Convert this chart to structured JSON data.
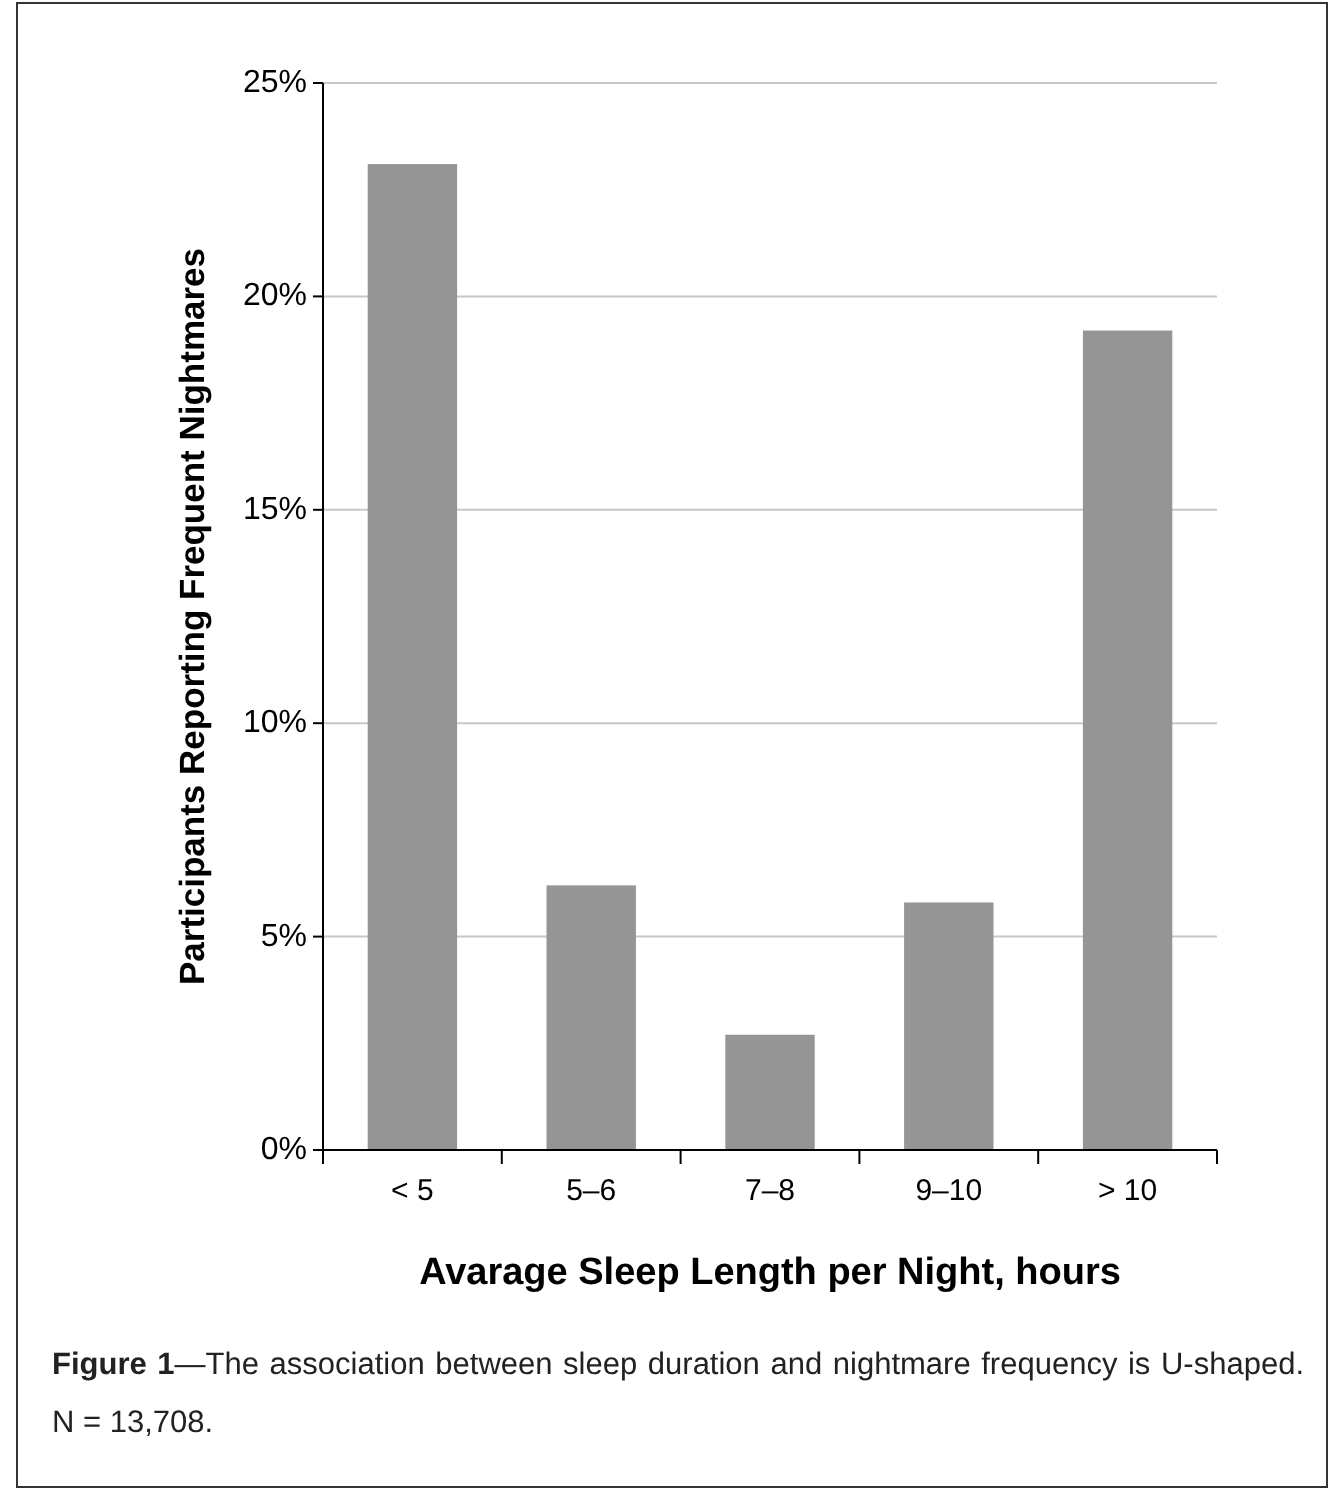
{
  "chart_data": {
    "type": "bar",
    "xlabel": "Avarage Sleep Length per Night, hours",
    "ylabel": "Participants Reporting Frequent Nightmares",
    "categories": [
      "< 5",
      "5–6",
      "7–8",
      "9–10",
      "> 10"
    ],
    "values": [
      23.1,
      6.2,
      2.7,
      5.8,
      19.2
    ],
    "color": "#959595",
    "ylim": [
      0,
      25
    ],
    "yticks": [
      {
        "value": 0,
        "label": "0%"
      },
      {
        "value": 5,
        "label": "5%"
      },
      {
        "value": 10,
        "label": "10%"
      },
      {
        "value": 15,
        "label": "15%"
      },
      {
        "value": 20,
        "label": "20%"
      },
      {
        "value": 25,
        "label": "25%"
      }
    ],
    "grid": "y",
    "annotations": [
      "Figure 1",
      "—The association between sleep duration and nightmare frequency is U-shaped. N = 13,708."
    ]
  }
}
